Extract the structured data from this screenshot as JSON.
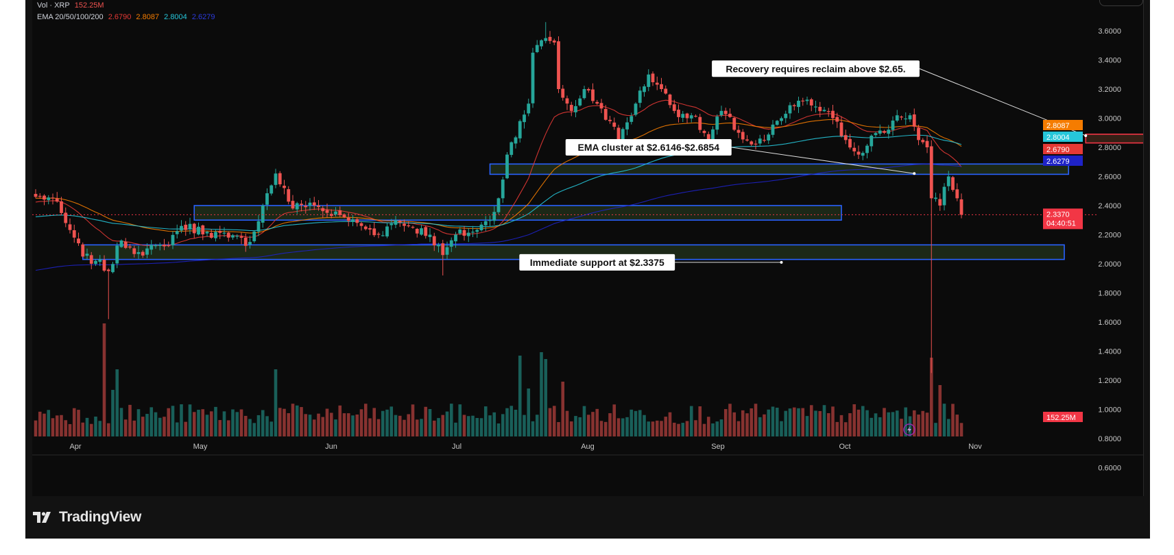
{
  "header": {
    "vol_label": "Vol · XRP",
    "vol_value": "152.25M",
    "ema_label": "EMA 20/50/100/200",
    "ema_values": [
      "2.6790",
      "2.8087",
      "2.8004",
      "2.6279"
    ]
  },
  "branding": {
    "logo_text": "TradingView"
  },
  "colors": {
    "up": "#26a69a",
    "down": "#ef5350",
    "ema20": "#e53935",
    "ema50": "#f57c00",
    "ema100": "#26c6da",
    "ema200": "#1e22c8",
    "zone_border": "#2962ff",
    "zone_fill": "#23331c",
    "resistance_border": "#f23645",
    "resistance_fill": "#3a2217",
    "price_line": "#f23645"
  },
  "chart_data": {
    "type": "candlestick",
    "symbol": "XRP",
    "x_axis": {
      "labels": [
        "Apr",
        "May",
        "Jun",
        "Jul",
        "Aug",
        "Sep",
        "Oct",
        "Nov"
      ]
    },
    "y_axis": {
      "range": [
        0.5,
        3.75
      ],
      "ticks": [
        "3.6000",
        "3.4000",
        "3.2000",
        "3.0000",
        "2.8000",
        "2.6000",
        "2.4000",
        "2.2000",
        "2.0000",
        "1.8000",
        "1.6000",
        "1.4000",
        "1.2000",
        "1.0000",
        "0.8000",
        "0.6000"
      ]
    },
    "price_labels": [
      {
        "value": 2.8087,
        "text": "2.8087",
        "color": "#f57c00"
      },
      {
        "value": 2.8004,
        "text": "2.8004",
        "color": "#26c6da"
      },
      {
        "value": 2.679,
        "text": "2.6790",
        "color": "#e53935"
      },
      {
        "value": 2.6279,
        "text": "2.6279",
        "color": "#1e22c8"
      },
      {
        "value": 2.337,
        "text": "2.3370",
        "subtext": "04:40:51",
        "color": "#f23645"
      }
    ],
    "volume_label": {
      "text": "152.25M",
      "color": "#f23645"
    },
    "zones": [
      {
        "name": "resistance-zone",
        "from_day": 245,
        "to_day": 260,
        "low": 2.83,
        "high": 2.89,
        "kind": "resistance"
      },
      {
        "name": "ema-cluster-zone",
        "from_day": 106,
        "to_day": 241,
        "low": 2.6146,
        "high": 2.6854,
        "kind": "support"
      },
      {
        "name": "range-zone",
        "from_day": 37,
        "to_day": 188,
        "low": 2.3,
        "high": 2.4,
        "kind": "support"
      },
      {
        "name": "support-zone",
        "from_day": 11,
        "to_day": 240,
        "low": 2.03,
        "high": 2.13,
        "kind": "support"
      }
    ],
    "annotations": [
      {
        "text": "Recovery requires reclaim above $2.65.",
        "day": 182,
        "value": 3.34,
        "anchor_day": 245,
        "anchor_value": 2.88
      },
      {
        "text": "EMA cluster at $2.6146-$2.6854",
        "day": 143,
        "value": 2.8,
        "anchor_day": 205,
        "anchor_value": 2.62
      },
      {
        "text": "Immediate support at $2.3375",
        "day": 131,
        "value": 2.01,
        "anchor_day": 174,
        "anchor_value": 2.01
      }
    ],
    "ohlc_keypoints": [
      {
        "day": 0,
        "close": 2.46
      },
      {
        "day": 4,
        "close": 2.45
      },
      {
        "day": 7,
        "close": 2.28
      },
      {
        "day": 9,
        "close": 2.18
      },
      {
        "day": 11,
        "close": 2.05
      },
      {
        "day": 14,
        "close": 2.02
      },
      {
        "day": 17,
        "close": 1.95
      },
      {
        "day": 20,
        "close": 2.16
      },
      {
        "day": 24,
        "close": 2.08
      },
      {
        "day": 30,
        "close": 2.12
      },
      {
        "day": 34,
        "close": 2.26
      },
      {
        "day": 40,
        "close": 2.22
      },
      {
        "day": 45,
        "close": 2.18
      },
      {
        "day": 50,
        "close": 2.15
      },
      {
        "day": 53,
        "close": 2.4
      },
      {
        "day": 56,
        "close": 2.62
      },
      {
        "day": 60,
        "close": 2.38
      },
      {
        "day": 64,
        "close": 2.42
      },
      {
        "day": 68,
        "close": 2.35
      },
      {
        "day": 72,
        "close": 2.32
      },
      {
        "day": 76,
        "close": 2.26
      },
      {
        "day": 80,
        "close": 2.2
      },
      {
        "day": 84,
        "close": 2.3
      },
      {
        "day": 88,
        "close": 2.25
      },
      {
        "day": 92,
        "close": 2.2
      },
      {
        "day": 95,
        "close": 2.06
      },
      {
        "day": 98,
        "close": 2.2
      },
      {
        "day": 102,
        "close": 2.22
      },
      {
        "day": 106,
        "close": 2.3
      },
      {
        "day": 108,
        "close": 2.45
      },
      {
        "day": 110,
        "close": 2.75
      },
      {
        "day": 113,
        "close": 2.98
      },
      {
        "day": 115,
        "close": 3.1
      },
      {
        "day": 116,
        "close": 3.45
      },
      {
        "day": 119,
        "close": 3.55
      },
      {
        "day": 121,
        "close": 3.52
      },
      {
        "day": 122,
        "close": 3.2
      },
      {
        "day": 125,
        "close": 3.05
      },
      {
        "day": 128,
        "close": 3.2
      },
      {
        "day": 131,
        "close": 3.1
      },
      {
        "day": 134,
        "close": 2.98
      },
      {
        "day": 136,
        "close": 2.85
      },
      {
        "day": 140,
        "close": 3.1
      },
      {
        "day": 143,
        "close": 3.3
      },
      {
        "day": 146,
        "close": 3.2
      },
      {
        "day": 149,
        "close": 3.05
      },
      {
        "day": 153,
        "close": 3.02
      },
      {
        "day": 157,
        "close": 2.85
      },
      {
        "day": 160,
        "close": 3.05
      },
      {
        "day": 164,
        "close": 2.9
      },
      {
        "day": 167,
        "close": 2.82
      },
      {
        "day": 170,
        "close": 2.85
      },
      {
        "day": 174,
        "close": 3.0
      },
      {
        "day": 178,
        "close": 3.12
      },
      {
        "day": 182,
        "close": 3.08
      },
      {
        "day": 186,
        "close": 3.0
      },
      {
        "day": 189,
        "close": 2.85
      },
      {
        "day": 192,
        "close": 2.75
      },
      {
        "day": 195,
        "close": 2.88
      },
      {
        "day": 198,
        "close": 2.9
      },
      {
        "day": 201,
        "close": 3.02
      },
      {
        "day": 204,
        "close": 3.02
      },
      {
        "day": 206,
        "close": 2.85
      },
      {
        "day": 208,
        "close": 2.8
      },
      {
        "day": 209,
        "close": 2.45
      },
      {
        "day": 211,
        "close": 2.4
      },
      {
        "day": 213,
        "close": 2.6
      },
      {
        "day": 215,
        "close": 2.45
      },
      {
        "day": 216,
        "close": 2.337
      }
    ]
  }
}
